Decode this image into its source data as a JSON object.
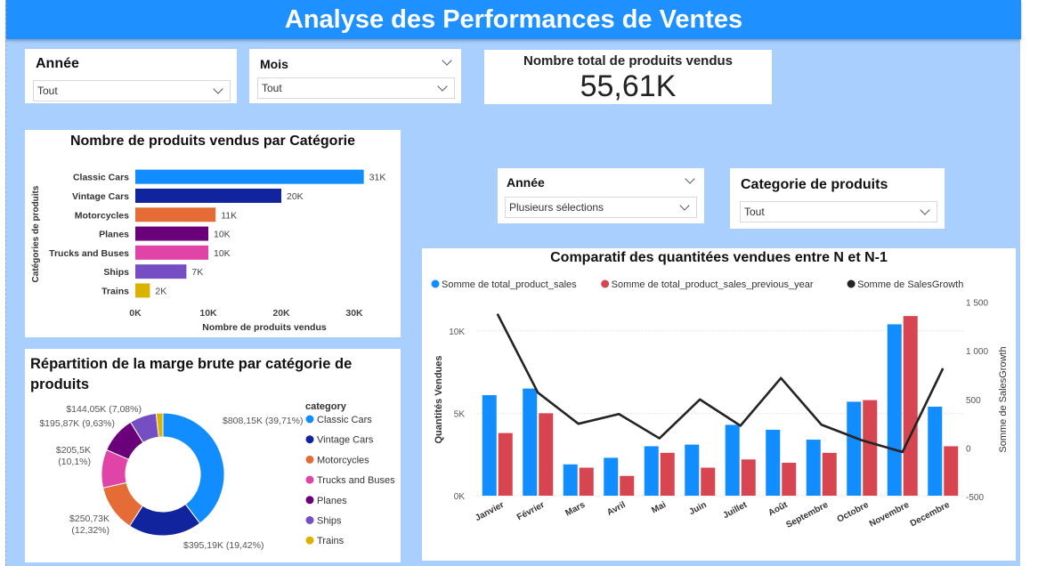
{
  "header": {
    "title": "Analyse des Performances de Ventes"
  },
  "slicers": {
    "annee_top": {
      "label": "Année",
      "value": "Tout"
    },
    "mois": {
      "label": "Mois",
      "value": "Tout"
    },
    "annee_right": {
      "label": "Année",
      "value": "Plusieurs sélections"
    },
    "categorie": {
      "label": "Categorie de produits",
      "value": "Tout"
    }
  },
  "kpi": {
    "label": "Nombre total de produits vendus",
    "value": "55,61K"
  },
  "colors": {
    "blue": "#118dff",
    "navy": "#12239e",
    "orange": "#e66c37",
    "purple": "#6b007b",
    "pink": "#e044a7",
    "violet": "#744ec2",
    "gold": "#d9b300",
    "red": "#d64550",
    "line": "#252423"
  },
  "chart_data": [
    {
      "type": "bar",
      "title": "Nombre de produits vendus par Catégorie",
      "xlabel": "Nombre de produits vendus",
      "ylabel": "Catégories de produits",
      "categories": [
        "Classic Cars",
        "Vintage Cars",
        "Motorcycles",
        "Planes",
        "Trucks and Buses",
        "Ships",
        "Trains"
      ],
      "values": [
        31.3,
        20.0,
        11.0,
        10.0,
        10.0,
        7.0,
        2.0
      ],
      "data_labels": [
        "31K",
        "20K",
        "11K",
        "10K",
        "10K",
        "7K",
        "2K"
      ],
      "colors": [
        "#118dff",
        "#12239e",
        "#e66c37",
        "#6b007b",
        "#e044a7",
        "#744ec2",
        "#d9b300"
      ],
      "xticks": [
        "0K",
        "10K",
        "20K",
        "30K"
      ],
      "xlim": [
        0,
        35
      ]
    },
    {
      "type": "pie",
      "title": "Répartition de la marge brute par catégorie de produits",
      "legend_title": "category",
      "slices": [
        {
          "name": "Classic Cars",
          "value": 808.15,
          "label": "$808,15K (39,71%)",
          "color": "#118dff"
        },
        {
          "name": "Vintage Cars",
          "value": 395.19,
          "label": "$395,19K (19,42%)",
          "color": "#12239e"
        },
        {
          "name": "Motorcycles",
          "value": 250.73,
          "label": "$250,73K (12,32%)",
          "color": "#e66c37"
        },
        {
          "name": "Trucks and Buses",
          "value": 205.5,
          "label": "$205,5K (10,1%)",
          "color": "#e044a7"
        },
        {
          "name": "Planes",
          "value": 195.87,
          "label": "$195,87K (9,63%)",
          "color": "#6b007b"
        },
        {
          "name": "Ships",
          "value": 144.05,
          "label": "$144,05K (7,08%)",
          "color": "#744ec2"
        },
        {
          "name": "Trains",
          "value": 36,
          "label": "",
          "color": "#d9b300"
        }
      ],
      "legend": [
        "Classic Cars",
        "Vintage Cars",
        "Motorcycles",
        "Trucks and Buses",
        "Planes",
        "Ships",
        "Trains"
      ],
      "legend_colors": [
        "#118dff",
        "#12239e",
        "#e66c37",
        "#e044a7",
        "#6b007b",
        "#744ec2",
        "#d9b300"
      ]
    },
    {
      "type": "bar",
      "title": "Comparatif des quantitées vendues entre N et N-1",
      "ylabel": "Quantités Vendues",
      "y2label": "Somme de SalesGrowth",
      "categories": [
        "Janvier",
        "Février",
        "Mars",
        "Avril",
        "Mai",
        "Juin",
        "Juillet",
        "Août",
        "Septembre",
        "Octobre",
        "Novembre",
        "Decembre"
      ],
      "series": [
        {
          "name": "Somme de total_product_sales",
          "values": [
            6100,
            6500,
            1900,
            2300,
            3000,
            3100,
            4300,
            4000,
            3400,
            5700,
            10400,
            5400
          ],
          "color": "#118dff"
        },
        {
          "name": "Somme de total_product_sales_previous_year",
          "values": [
            3800,
            5000,
            1700,
            1200,
            2600,
            1700,
            2200,
            2000,
            2600,
            5800,
            10900,
            3000
          ],
          "color": "#d64550"
        },
        {
          "name": "Somme de SalesGrowth",
          "values": [
            1380,
            570,
            250,
            350,
            100,
            500,
            230,
            720,
            240,
            80,
            -40,
            820
          ],
          "color": "#252423",
          "axis": "right"
        }
      ],
      "ylim": [
        0,
        11500
      ],
      "y2lim": [
        -500,
        1600
      ],
      "yticks": [
        "0K",
        "5K",
        "10K"
      ],
      "yticks_values": [
        0,
        5000,
        10000
      ],
      "y2ticks": [
        "-500",
        "0",
        "500",
        "1 000",
        "1 500"
      ],
      "y2ticks_values": [
        -500,
        0,
        500,
        1000,
        1500
      ],
      "legend": "top-left",
      "grid": true
    }
  ]
}
